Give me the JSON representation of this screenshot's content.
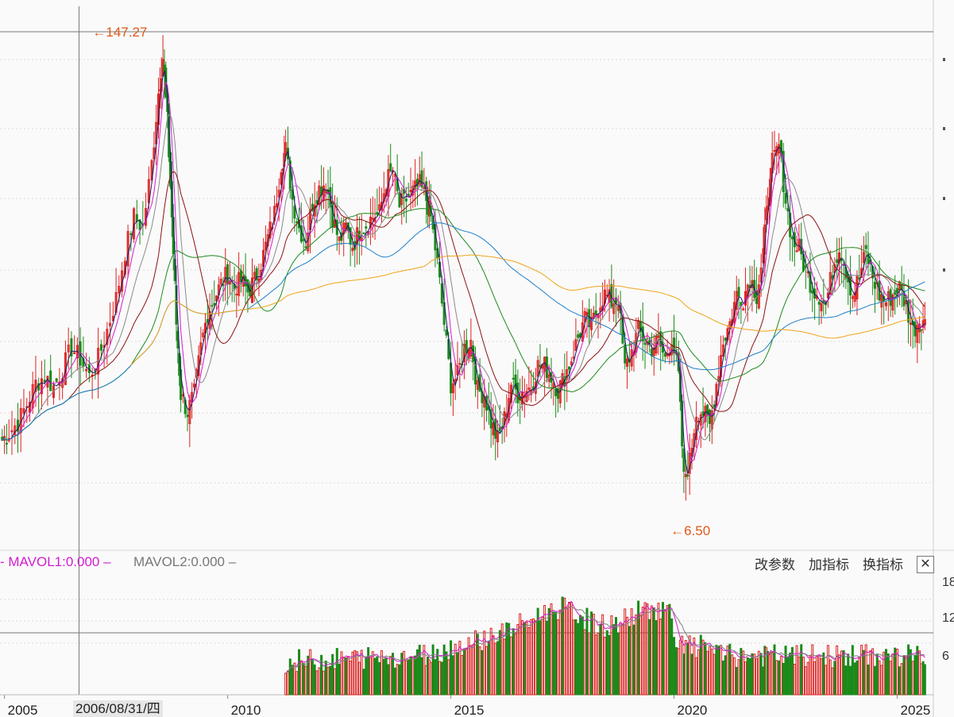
{
  "chart_data": [
    {
      "type": "candlestick",
      "title": "",
      "price_range": [
        0,
        155
      ],
      "grid": true,
      "annotations": [
        {
          "text": "147.27",
          "date": 2006.9,
          "value": 147.27,
          "color": "#e05a1a"
        },
        {
          "text": "6.50",
          "date": 2019.85,
          "value": 6.5,
          "color": "#e05a1a"
        }
      ],
      "crosshair": {
        "date": 2006.67,
        "value": 147.27
      },
      "x_ticks": [
        2005,
        2010,
        2015,
        2020,
        2025
      ],
      "x_tick_labels": [
        "2005",
        "2010",
        "2015",
        "2020",
        "2025"
      ],
      "crosshair_date_label": "2006/08/31/四",
      "x_range": [
        2004.9,
        2025.72
      ],
      "ohlc": [
        {
          "t": 2004.95,
          "c": 32
        },
        {
          "t": 2005.1,
          "c": 34
        },
        {
          "t": 2005.3,
          "c": 37
        },
        {
          "t": 2005.5,
          "c": 42
        },
        {
          "t": 2005.7,
          "c": 48
        },
        {
          "t": 2005.9,
          "c": 50
        },
        {
          "t": 2006.1,
          "c": 47
        },
        {
          "t": 2006.3,
          "c": 52
        },
        {
          "t": 2006.5,
          "c": 58
        },
        {
          "t": 2006.7,
          "c": 55
        },
        {
          "t": 2006.9,
          "c": 50
        },
        {
          "t": 2007.1,
          "c": 55
        },
        {
          "t": 2007.3,
          "c": 63
        },
        {
          "t": 2007.5,
          "c": 72
        },
        {
          "t": 2007.7,
          "c": 85
        },
        {
          "t": 2007.9,
          "c": 95
        },
        {
          "t": 2008.1,
          "c": 92
        },
        {
          "t": 2008.3,
          "c": 110
        },
        {
          "t": 2008.45,
          "c": 130
        },
        {
          "t": 2008.55,
          "c": 140
        },
        {
          "t": 2008.65,
          "c": 122
        },
        {
          "t": 2008.75,
          "c": 95
        },
        {
          "t": 2008.85,
          "c": 65
        },
        {
          "t": 2008.95,
          "c": 45
        },
        {
          "t": 2009.1,
          "c": 40
        },
        {
          "t": 2009.25,
          "c": 45
        },
        {
          "t": 2009.4,
          "c": 58
        },
        {
          "t": 2009.55,
          "c": 68
        },
        {
          "t": 2009.7,
          "c": 72
        },
        {
          "t": 2009.85,
          "c": 76
        },
        {
          "t": 2010.0,
          "c": 79
        },
        {
          "t": 2010.15,
          "c": 75
        },
        {
          "t": 2010.3,
          "c": 77
        },
        {
          "t": 2010.45,
          "c": 74
        },
        {
          "t": 2010.6,
          "c": 77
        },
        {
          "t": 2010.75,
          "c": 82
        },
        {
          "t": 2010.9,
          "c": 89
        },
        {
          "t": 2011.05,
          "c": 96
        },
        {
          "t": 2011.2,
          "c": 110
        },
        {
          "t": 2011.3,
          "c": 114
        },
        {
          "t": 2011.45,
          "c": 100
        },
        {
          "t": 2011.6,
          "c": 92
        },
        {
          "t": 2011.75,
          "c": 88
        },
        {
          "t": 2011.9,
          "c": 99
        },
        {
          "t": 2012.05,
          "c": 103
        },
        {
          "t": 2012.2,
          "c": 105
        },
        {
          "t": 2012.35,
          "c": 95
        },
        {
          "t": 2012.5,
          "c": 88
        },
        {
          "t": 2012.65,
          "c": 92
        },
        {
          "t": 2012.8,
          "c": 87
        },
        {
          "t": 2012.95,
          "c": 91
        },
        {
          "t": 2013.1,
          "c": 93
        },
        {
          "t": 2013.25,
          "c": 95
        },
        {
          "t": 2013.4,
          "c": 96
        },
        {
          "t": 2013.55,
          "c": 105
        },
        {
          "t": 2013.7,
          "c": 108
        },
        {
          "t": 2013.85,
          "c": 98
        },
        {
          "t": 2014.0,
          "c": 100
        },
        {
          "t": 2014.15,
          "c": 102
        },
        {
          "t": 2014.3,
          "c": 104
        },
        {
          "t": 2014.45,
          "c": 100
        },
        {
          "t": 2014.55,
          "c": 95
        },
        {
          "t": 2014.7,
          "c": 82
        },
        {
          "t": 2014.85,
          "c": 65
        },
        {
          "t": 2015.0,
          "c": 48
        },
        {
          "t": 2015.15,
          "c": 50
        },
        {
          "t": 2015.3,
          "c": 58
        },
        {
          "t": 2015.45,
          "c": 60
        },
        {
          "t": 2015.6,
          "c": 46
        },
        {
          "t": 2015.75,
          "c": 45
        },
        {
          "t": 2015.9,
          "c": 37
        },
        {
          "t": 2016.05,
          "c": 32
        },
        {
          "t": 2016.2,
          "c": 38
        },
        {
          "t": 2016.35,
          "c": 48
        },
        {
          "t": 2016.5,
          "c": 45
        },
        {
          "t": 2016.65,
          "c": 46
        },
        {
          "t": 2016.8,
          "c": 47
        },
        {
          "t": 2016.95,
          "c": 53
        },
        {
          "t": 2017.1,
          "c": 53
        },
        {
          "t": 2017.25,
          "c": 50
        },
        {
          "t": 2017.4,
          "c": 46
        },
        {
          "t": 2017.55,
          "c": 50
        },
        {
          "t": 2017.7,
          "c": 55
        },
        {
          "t": 2017.85,
          "c": 61
        },
        {
          "t": 2018.0,
          "c": 66
        },
        {
          "t": 2018.15,
          "c": 64
        },
        {
          "t": 2018.3,
          "c": 70
        },
        {
          "t": 2018.45,
          "c": 73
        },
        {
          "t": 2018.6,
          "c": 71
        },
        {
          "t": 2018.75,
          "c": 72
        },
        {
          "t": 2018.9,
          "c": 52
        },
        {
          "t": 2019.05,
          "c": 57
        },
        {
          "t": 2019.2,
          "c": 63
        },
        {
          "t": 2019.35,
          "c": 60
        },
        {
          "t": 2019.5,
          "c": 58
        },
        {
          "t": 2019.65,
          "c": 60
        },
        {
          "t": 2019.8,
          "c": 55
        },
        {
          "t": 2019.95,
          "c": 61
        },
        {
          "t": 2020.1,
          "c": 50
        },
        {
          "t": 2020.22,
          "c": 21
        },
        {
          "t": 2020.35,
          "c": 26
        },
        {
          "t": 2020.5,
          "c": 40
        },
        {
          "t": 2020.65,
          "c": 40
        },
        {
          "t": 2020.8,
          "c": 36
        },
        {
          "t": 2020.95,
          "c": 48
        },
        {
          "t": 2021.1,
          "c": 60
        },
        {
          "t": 2021.25,
          "c": 65
        },
        {
          "t": 2021.4,
          "c": 73
        },
        {
          "t": 2021.55,
          "c": 72
        },
        {
          "t": 2021.7,
          "c": 78
        },
        {
          "t": 2021.85,
          "c": 73
        },
        {
          "t": 2022.0,
          "c": 85
        },
        {
          "t": 2022.1,
          "c": 100
        },
        {
          "t": 2022.2,
          "c": 110
        },
        {
          "t": 2022.35,
          "c": 115
        },
        {
          "t": 2022.5,
          "c": 100
        },
        {
          "t": 2022.65,
          "c": 88
        },
        {
          "t": 2022.8,
          "c": 86
        },
        {
          "t": 2022.95,
          "c": 80
        },
        {
          "t": 2023.1,
          "c": 75
        },
        {
          "t": 2023.25,
          "c": 73
        },
        {
          "t": 2023.4,
          "c": 70
        },
        {
          "t": 2023.55,
          "c": 80
        },
        {
          "t": 2023.7,
          "c": 87
        },
        {
          "t": 2023.85,
          "c": 80
        },
        {
          "t": 2024.0,
          "c": 73
        },
        {
          "t": 2024.15,
          "c": 78
        },
        {
          "t": 2024.3,
          "c": 85
        },
        {
          "t": 2024.45,
          "c": 78
        },
        {
          "t": 2024.6,
          "c": 73
        },
        {
          "t": 2024.75,
          "c": 71
        },
        {
          "t": 2024.9,
          "c": 73
        },
        {
          "t": 2025.05,
          "c": 75
        },
        {
          "t": 2025.2,
          "c": 70
        },
        {
          "t": 2025.35,
          "c": 63
        },
        {
          "t": 2025.5,
          "c": 66
        },
        {
          "t": 2025.62,
          "c": 66
        }
      ],
      "series": [
        {
          "name": "",
          "color": "#1a1a6a",
          "type": "ma"
        },
        {
          "name": "",
          "color": "#d21cd2",
          "type": "ma"
        },
        {
          "name": "",
          "color": "#8a8a8a",
          "type": "ma"
        },
        {
          "name": "",
          "color": "#8b1010",
          "type": "ma"
        },
        {
          "name": "",
          "color": "#1e8a1e",
          "type": "ma"
        },
        {
          "name": "",
          "color": "#1f7fc8",
          "type": "ma"
        },
        {
          "name": "",
          "color": "#f0a418",
          "type": "ma"
        }
      ],
      "up_color": "#dd2222",
      "down_color": "#1a8a1a"
    },
    {
      "type": "bar",
      "title": "",
      "legend": [
        {
          "label": "MAVOL1:0.000",
          "color": "#d21cd2"
        },
        {
          "label": "MAVOL2:0.000",
          "color": "#808080"
        }
      ],
      "y_ticks": [
        "18",
        "12",
        "6"
      ],
      "y_range": [
        0,
        20
      ],
      "volume_start": 2011.3
    }
  ],
  "toolbar": {
    "param_label": "改参数",
    "add_indicator_label": "加指标",
    "switch_indicator_label": "换指标",
    "close_label": "✕"
  }
}
